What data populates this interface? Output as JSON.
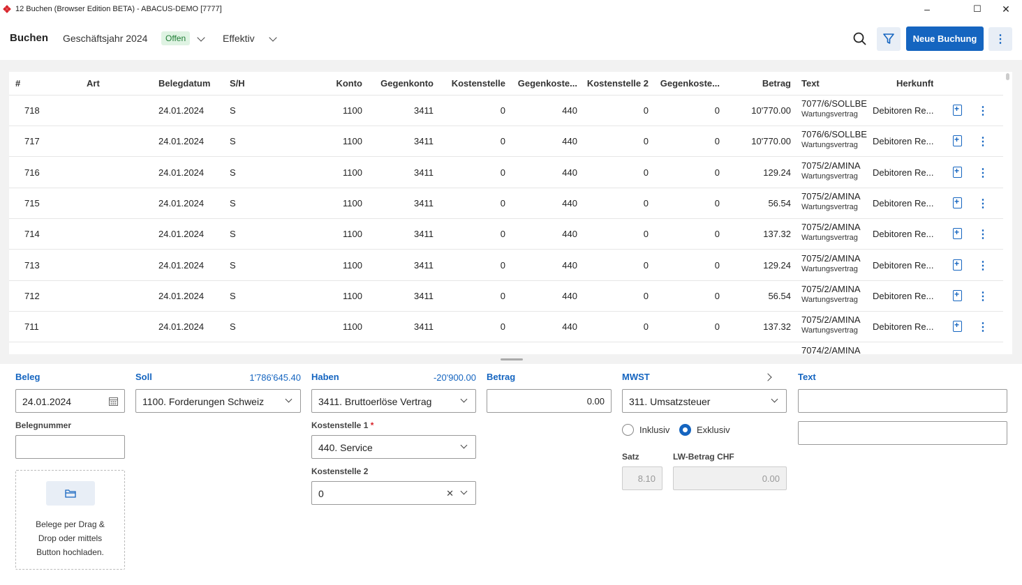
{
  "window": {
    "title": "12 Buchen (Browser Edition BETA) - ABACUS-DEMO [7777]",
    "minimize": "–",
    "maximize": "☐",
    "close": "✕"
  },
  "header": {
    "title": "Buchen",
    "fiscal_year": "Geschäftsjahr 2024",
    "status_badge": "Offen",
    "mode": "Effektiv",
    "new_button": "Neue Buchung",
    "more_icon": "⋮"
  },
  "table": {
    "columns": [
      "#",
      "Art",
      "Belegdatum",
      "S/H",
      "Konto",
      "Gegenkonto",
      "Kostenstelle",
      "Gegenkoste...",
      "Kostenstelle 2",
      "Gegenkoste...",
      "Betrag",
      "Text",
      "Herkunft"
    ],
    "rows": [
      {
        "nr": "718",
        "art": "",
        "date": "24.01.2024",
        "sh": "S",
        "konto": "1100",
        "gegenkonto": "3411",
        "kst": "0",
        "gkst": "440",
        "kst2": "0",
        "gkst2": "0",
        "betrag": "10'770.00",
        "text1": "7077/6/SOLLBE",
        "text2": "Wartungsvertrag",
        "herkunft": "Debitoren Re..."
      },
      {
        "nr": "717",
        "art": "",
        "date": "24.01.2024",
        "sh": "S",
        "konto": "1100",
        "gegenkonto": "3411",
        "kst": "0",
        "gkst": "440",
        "kst2": "0",
        "gkst2": "0",
        "betrag": "10'770.00",
        "text1": "7076/6/SOLLBE",
        "text2": "Wartungsvertrag",
        "herkunft": "Debitoren Re..."
      },
      {
        "nr": "716",
        "art": "",
        "date": "24.01.2024",
        "sh": "S",
        "konto": "1100",
        "gegenkonto": "3411",
        "kst": "0",
        "gkst": "440",
        "kst2": "0",
        "gkst2": "0",
        "betrag": "129.24",
        "text1": "7075/2/AMINA",
        "text2": "Wartungsvertrag",
        "herkunft": "Debitoren Re..."
      },
      {
        "nr": "715",
        "art": "",
        "date": "24.01.2024",
        "sh": "S",
        "konto": "1100",
        "gegenkonto": "3411",
        "kst": "0",
        "gkst": "440",
        "kst2": "0",
        "gkst2": "0",
        "betrag": "56.54",
        "text1": "7075/2/AMINA",
        "text2": "Wartungsvertrag",
        "herkunft": "Debitoren Re..."
      },
      {
        "nr": "714",
        "art": "",
        "date": "24.01.2024",
        "sh": "S",
        "konto": "1100",
        "gegenkonto": "3411",
        "kst": "0",
        "gkst": "440",
        "kst2": "0",
        "gkst2": "0",
        "betrag": "137.32",
        "text1": "7075/2/AMINA",
        "text2": "Wartungsvertrag",
        "herkunft": "Debitoren Re..."
      },
      {
        "nr": "713",
        "art": "",
        "date": "24.01.2024",
        "sh": "S",
        "konto": "1100",
        "gegenkonto": "3411",
        "kst": "0",
        "gkst": "440",
        "kst2": "0",
        "gkst2": "0",
        "betrag": "129.24",
        "text1": "7075/2/AMINA",
        "text2": "Wartungsvertrag",
        "herkunft": "Debitoren Re..."
      },
      {
        "nr": "712",
        "art": "",
        "date": "24.01.2024",
        "sh": "S",
        "konto": "1100",
        "gegenkonto": "3411",
        "kst": "0",
        "gkst": "440",
        "kst2": "0",
        "gkst2": "0",
        "betrag": "56.54",
        "text1": "7075/2/AMINA",
        "text2": "Wartungsvertrag",
        "herkunft": "Debitoren Re..."
      },
      {
        "nr": "711",
        "art": "",
        "date": "24.01.2024",
        "sh": "S",
        "konto": "1100",
        "gegenkonto": "3411",
        "kst": "0",
        "gkst": "440",
        "kst2": "0",
        "gkst2": "0",
        "betrag": "137.32",
        "text1": "7075/2/AMINA",
        "text2": "Wartungsvertrag",
        "herkunft": "Debitoren Re..."
      },
      {
        "nr": "",
        "art": "",
        "date": "",
        "sh": "",
        "konto": "",
        "gegenkonto": "",
        "kst": "",
        "gkst": "",
        "kst2": "",
        "gkst2": "",
        "betrag": "",
        "text1": "7074/2/AMINA",
        "text2": "",
        "herkunft": ""
      }
    ]
  },
  "form": {
    "beleg": {
      "label": "Beleg",
      "date": "24.01.2024",
      "belegnummer_label": "Belegnummer",
      "belegnummer": ""
    },
    "soll": {
      "label": "Soll",
      "amount": "1'786'645.40",
      "value": "1100. Forderungen Schweiz"
    },
    "haben": {
      "label": "Haben",
      "amount": "-20'900.00",
      "value": "3411. Bruttoerlöse Vertrag"
    },
    "kostenstelle1": {
      "label": "Kostenstelle 1",
      "required": "*",
      "value": "440. Service"
    },
    "kostenstelle2": {
      "label": "Kostenstelle 2",
      "value": "0",
      "clear": "✕"
    },
    "betrag": {
      "label": "Betrag",
      "value": "0.00"
    },
    "mwst": {
      "label": "MWST",
      "value": "311. Umsatzsteuer",
      "inklusiv": "Inklusiv",
      "exklusiv": "Exklusiv",
      "satz_label": "Satz",
      "satz": "8.10",
      "lw_label": "LW-Betrag CHF",
      "lw": "0.00"
    },
    "text": {
      "label": "Text",
      "line1": "",
      "line2": ""
    },
    "upload": {
      "line1": "Belege per Drag &",
      "line2": "Drop oder mittels",
      "line3": "Button hochladen."
    }
  },
  "colors": {
    "accent": "#1565c0",
    "badge_bg": "#dff3e3",
    "badge_text": "#1e7d34",
    "required": "#d8232a"
  }
}
